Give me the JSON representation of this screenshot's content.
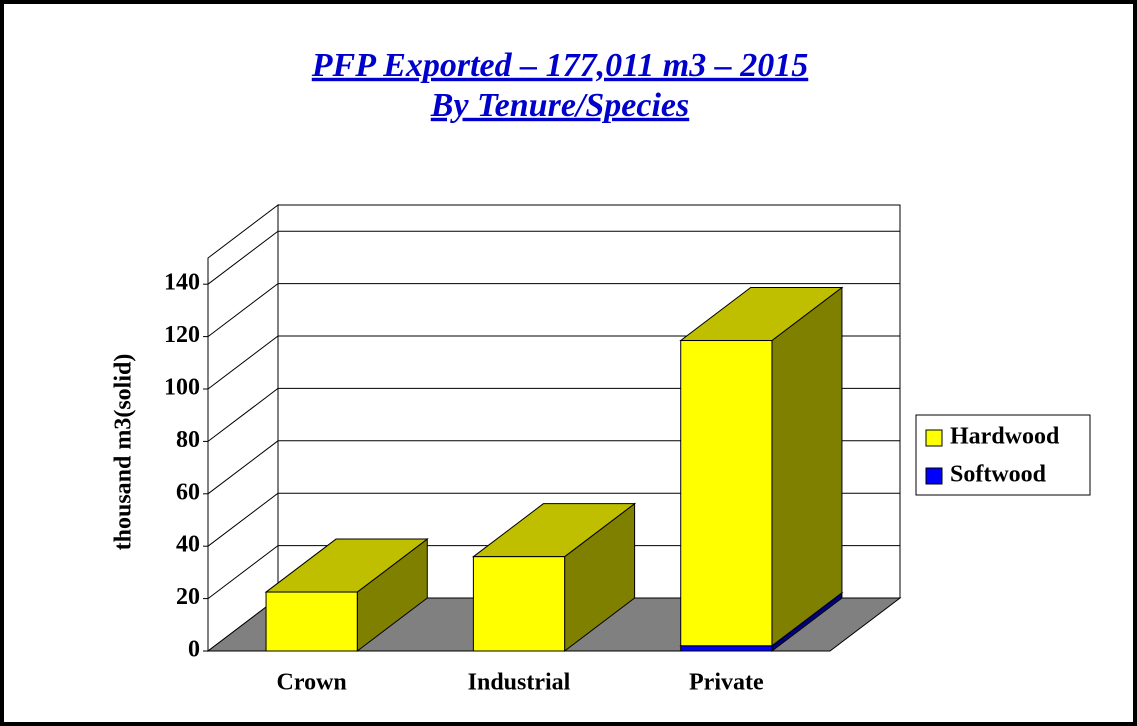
{
  "chart_data": {
    "type": "bar3d_stacked",
    "title": "PFP Exported – 177,011 m3 – 2015",
    "subtitle": "By Tenure/Species ",
    "y_label": "thousand m3(solid)",
    "categories": [
      "Crown",
      "Industrial",
      "Private"
    ],
    "series": [
      {
        "name": "Hardwood",
        "color": "#ffff00",
        "values": [
          22.5,
          36,
          116.5
        ]
      },
      {
        "name": "Softwood",
        "color": "#0000ff",
        "values": [
          0,
          0,
          2
        ]
      }
    ],
    "ylim": [
      0,
      150
    ],
    "yticks": [
      0,
      20,
      40,
      60,
      80,
      100,
      120,
      140
    ],
    "grid": true,
    "legend": "right"
  }
}
